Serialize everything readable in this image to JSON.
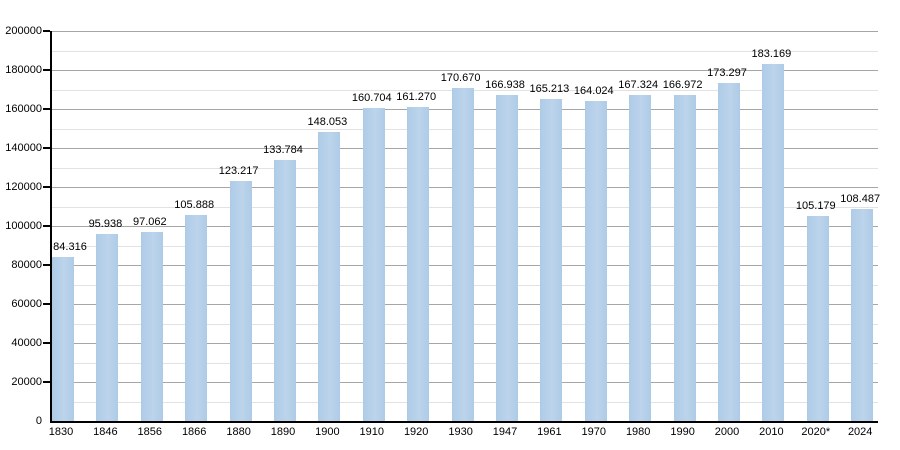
{
  "chart_data": {
    "type": "bar",
    "title": "",
    "xlabel": "",
    "ylabel": "",
    "categories": [
      "1830",
      "1846",
      "1856",
      "1866",
      "1880",
      "1890",
      "1900",
      "1910",
      "1920",
      "1930",
      "1947",
      "1961",
      "1970",
      "1980",
      "1990",
      "2000",
      "2010",
      "2020*",
      "2024"
    ],
    "values": [
      84316,
      95938,
      97062,
      105888,
      123217,
      133784,
      148053,
      160704,
      161270,
      170670,
      166938,
      165213,
      164024,
      167324,
      166972,
      173297,
      183169,
      105179,
      108487
    ],
    "value_labels": [
      "84.316",
      "95.938",
      "97.062",
      "105.888",
      "123.217",
      "133.784",
      "148.053",
      "160.704",
      "161.270",
      "170.670",
      "166.938",
      "165.213",
      "164.024",
      "167.324",
      "166.972",
      "173.297",
      "183.169",
      "105.179",
      "108.487"
    ],
    "ylim": [
      0,
      200000
    ],
    "y_major_step": 20000,
    "y_minor_step": 10000,
    "y_tick_labels": [
      "0",
      "20000",
      "40000",
      "60000",
      "80000",
      "100000",
      "120000",
      "140000",
      "160000",
      "180000",
      "200000"
    ],
    "grid": true,
    "legend": "none",
    "colors": {
      "bar_fill": "#aecbe6",
      "bar_fill_light": "#bcd4ec",
      "major_gridline": "#a6a6a6",
      "minor_gridline": "#e2e2e2",
      "axis": "#000000",
      "text": "#000000",
      "background": "#ffffff"
    }
  }
}
